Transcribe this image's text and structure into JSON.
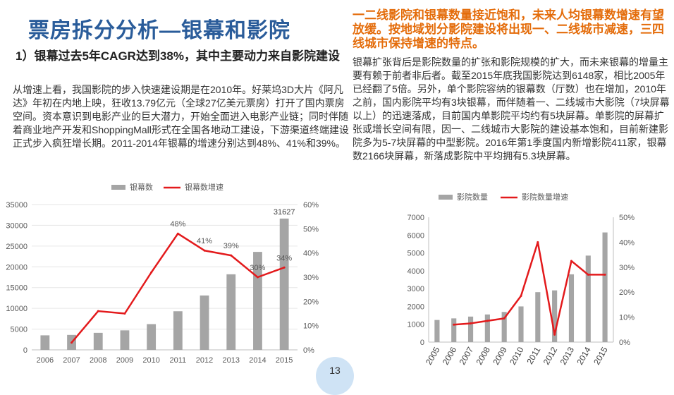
{
  "slide": {
    "title": "票房拆分分析—银幕和影院",
    "page_number": "13"
  },
  "left": {
    "heading": "1）银幕过去5年CAGR达到38%，其中主要动力来自影院建设",
    "body": "从增速上看，我国影院的步入快速建设期是在2010年。好莱坞3D大片《阿凡达》年初在内地上映，狂收13.79亿元（全球27亿美元票房）打开了国内票房空间。资本意识到电影产业的巨大潜力，开始全面进入电影产业链；同时伴随着商业地产开发和ShoppingMall形式在全国各地动工建设，下游渠道终端建设正式步入疯狂增长期。2011-2014年银幕的增速分别达到48%、41%和39%。"
  },
  "right": {
    "highlight": "一二线影院和银幕数量接近饱和，未来人均银幕数增速有望放缓。按地域划分影院建设将出现一、二线城市减速，三四线城市保持增速的特点。",
    "body": "银幕扩张背后是影院数量的扩张和影院规模的扩大，而未来银幕的增量主要有赖于前者非后者。截至2015年底我国影院达到6148家，相比2005年已经翻了5倍。另外，单个影院容纳的银幕数（厅数）也在增加，2010年之前，国内影院平均有3块银幕，而伴随着一、二线城市大影院（7块屏幕以上）的迅速落成，目前国内单影院平均约有5块屏幕。单影院的屏幕扩张或增长空间有限，因一、二线城市大影院的建设基本饱和，目前新建影院多为5-7块屏幕的中型影院。2016年第1季度国内新增影院411家，银幕数2166块屏幕，新落成影院中平均拥有5.3块屏幕。"
  },
  "colors": {
    "title": "#2a5c9a",
    "highlight": "#e46c0a",
    "bar": "#a5a5a5",
    "line": "#e31a1c",
    "badge": "#cfe3f5"
  },
  "chart_data": [
    {
      "type": "bar",
      "categories": [
        "2006",
        "2007",
        "2008",
        "2009",
        "2010",
        "2011",
        "2012",
        "2013",
        "2014",
        "2015"
      ],
      "series": [
        {
          "name": "银幕数",
          "type": "bar",
          "axis": "left",
          "values": [
            3500,
            3600,
            4100,
            4700,
            6200,
            9300,
            13100,
            18200,
            23600,
            31627
          ]
        },
        {
          "name": "银幕数增速",
          "type": "line",
          "axis": "right",
          "values": [
            null,
            0.03,
            0.16,
            0.15,
            0.32,
            0.48,
            0.41,
            0.39,
            0.3,
            0.34
          ]
        }
      ],
      "data_labels": [
        {
          "index": 5,
          "text": "48%"
        },
        {
          "index": 6,
          "text": "41%"
        },
        {
          "index": 7,
          "text": "39%"
        },
        {
          "index": 8,
          "text": "30%"
        },
        {
          "index": 9,
          "text": "34%"
        },
        {
          "index": 9,
          "text": "31627"
        }
      ],
      "left_ticks": [
        "0",
        "5000",
        "10000",
        "15000",
        "20000",
        "25000",
        "30000",
        "35000"
      ],
      "right_ticks": [
        "0%",
        "10%",
        "20%",
        "30%",
        "40%",
        "50%",
        "60%"
      ],
      "ylim_left": [
        0,
        35000
      ],
      "ylim_right": [
        0,
        0.6
      ],
      "legend_position": "top",
      "grid": true
    },
    {
      "type": "bar",
      "categories": [
        "2005",
        "2006",
        "2007",
        "2008",
        "2009",
        "2010",
        "2011",
        "2012",
        "2013",
        "2014",
        "2015"
      ],
      "series": [
        {
          "name": "影院数量",
          "type": "bar",
          "axis": "left",
          "values": [
            1240,
            1330,
            1430,
            1550,
            1690,
            2000,
            2800,
            2900,
            3800,
            4850,
            6148
          ]
        },
        {
          "name": "影院数量增速",
          "type": "line",
          "axis": "right",
          "values": [
            null,
            0.07,
            0.075,
            0.085,
            0.095,
            0.185,
            0.4,
            0.03,
            0.325,
            0.27,
            0.27
          ]
        }
      ],
      "left_ticks": [
        "0",
        "1000",
        "2000",
        "3000",
        "4000",
        "5000",
        "6000",
        "7000"
      ],
      "right_ticks": [
        "0%",
        "10%",
        "20%",
        "30%",
        "40%",
        "50%"
      ],
      "ylim_left": [
        0,
        7000
      ],
      "ylim_right": [
        0,
        0.5
      ],
      "legend_position": "top",
      "grid": false
    }
  ]
}
